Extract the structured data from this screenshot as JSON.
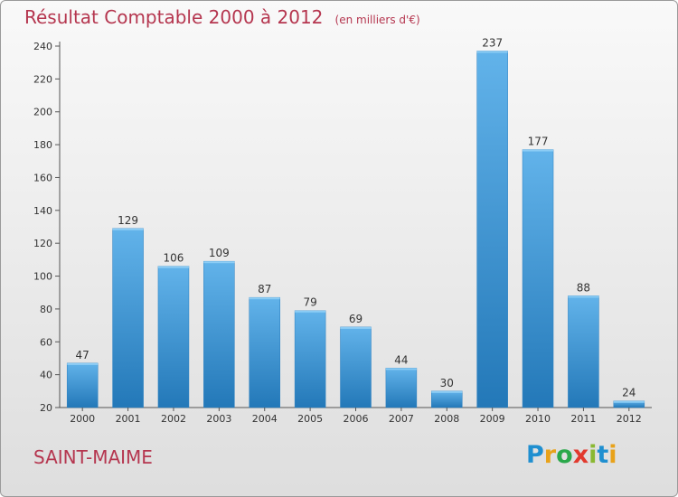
{
  "header": {
    "title": "Résultat Comptable 2000 à 2012",
    "unit": "(en milliers d'€)"
  },
  "footer": {
    "commune": "SAINT-MAIME",
    "logo_letters": [
      {
        "ch": "P",
        "color": "#1f8fd0"
      },
      {
        "ch": "r",
        "color": "#e8a21a"
      },
      {
        "ch": "o",
        "color": "#2aa84a"
      },
      {
        "ch": "x",
        "color": "#e23a2e"
      },
      {
        "ch": "i",
        "color": "#8ab832"
      },
      {
        "ch": "t",
        "color": "#1f8fd0"
      },
      {
        "ch": "i",
        "color": "#e8a21a"
      }
    ]
  },
  "colors": {
    "bar_top": "#62b3ea",
    "bar_bottom": "#2378b8",
    "accent": "#b5364f"
  },
  "chart_data": {
    "type": "bar",
    "title": "Résultat Comptable 2000 à 2012",
    "subtitle": "(en milliers d'€)",
    "xlabel": "",
    "ylabel": "",
    "categories": [
      "2000",
      "2001",
      "2002",
      "2003",
      "2004",
      "2005",
      "2006",
      "2007",
      "2008",
      "2009",
      "2010",
      "2011",
      "2012"
    ],
    "values": [
      47,
      129,
      106,
      109,
      87,
      79,
      69,
      44,
      30,
      237,
      177,
      88,
      24
    ],
    "ylim": [
      20,
      240
    ],
    "yticks": [
      20,
      40,
      60,
      80,
      100,
      120,
      140,
      160,
      180,
      200,
      220,
      240
    ],
    "grid": false,
    "legend": "none"
  }
}
